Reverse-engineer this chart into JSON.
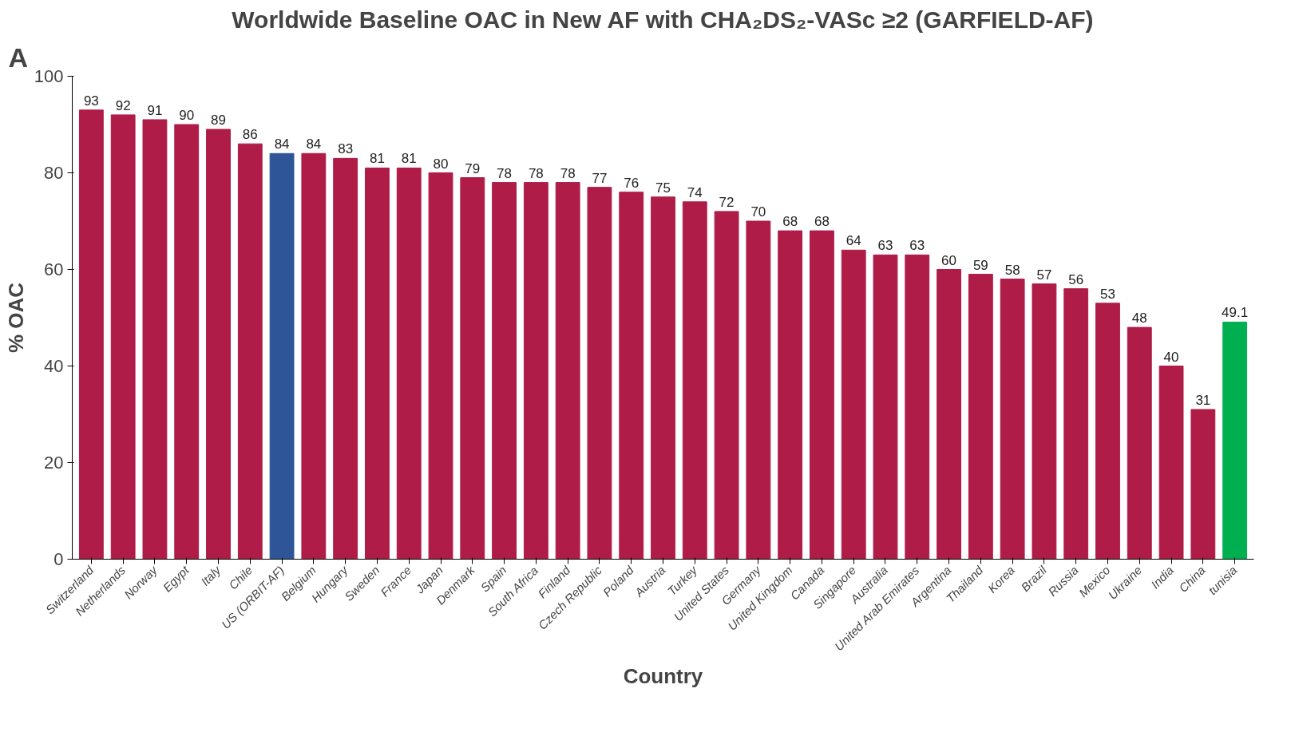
{
  "chart_data": {
    "type": "bar",
    "title": "Worldwide Baseline OAC in New AF with CHA₂DS₂-VASc ≥2 (GARFIELD-AF)",
    "xlabel": "Country",
    "ylabel": "% OAC",
    "annotations": [
      "A"
    ],
    "categories": [
      "Switzerland",
      "Netherlands",
      "Norway",
      "Egypt",
      "Italy",
      "Chile",
      "US (ORBIT-AF)",
      "Belgium",
      "Hungary",
      "Sweden",
      "France",
      "Japan",
      "Denmark",
      "Spain",
      "South Africa",
      "Finland",
      "Czech Republic",
      "Poland",
      "Austria",
      "Turkey",
      "United States",
      "Germany",
      "United Kingdom",
      "Canada",
      "Singapore",
      "Australia",
      "United Arab Emirates",
      "Argentina",
      "Thailand",
      "Korea",
      "Brazil",
      "Russia",
      "Mexico",
      "Ukraine",
      "India",
      "China",
      "tunisia"
    ],
    "values": [
      93,
      92,
      91,
      90,
      89,
      86,
      84,
      84,
      83,
      81,
      81,
      80,
      79,
      78,
      78,
      78,
      77,
      76,
      75,
      74,
      72,
      70,
      68,
      68,
      64,
      63,
      63,
      60,
      59,
      58,
      57,
      56,
      53,
      48,
      40,
      31,
      49.1
    ],
    "colors": [
      "#ae1c47",
      "#ae1c47",
      "#ae1c47",
      "#ae1c47",
      "#ae1c47",
      "#ae1c47",
      "#2e5597",
      "#ae1c47",
      "#ae1c47",
      "#ae1c47",
      "#ae1c47",
      "#ae1c47",
      "#ae1c47",
      "#ae1c47",
      "#ae1c47",
      "#ae1c47",
      "#ae1c47",
      "#ae1c47",
      "#ae1c47",
      "#ae1c47",
      "#ae1c47",
      "#ae1c47",
      "#ae1c47",
      "#ae1c47",
      "#ae1c47",
      "#ae1c47",
      "#ae1c47",
      "#ae1c47",
      "#ae1c47",
      "#ae1c47",
      "#ae1c47",
      "#ae1c47",
      "#ae1c47",
      "#ae1c47",
      "#ae1c47",
      "#ae1c47",
      "#00b050"
    ],
    "ylim": [
      0,
      100
    ],
    "yticks": [
      0,
      20,
      40,
      60,
      80,
      100
    ],
    "data_labels": true,
    "grid": false
  }
}
